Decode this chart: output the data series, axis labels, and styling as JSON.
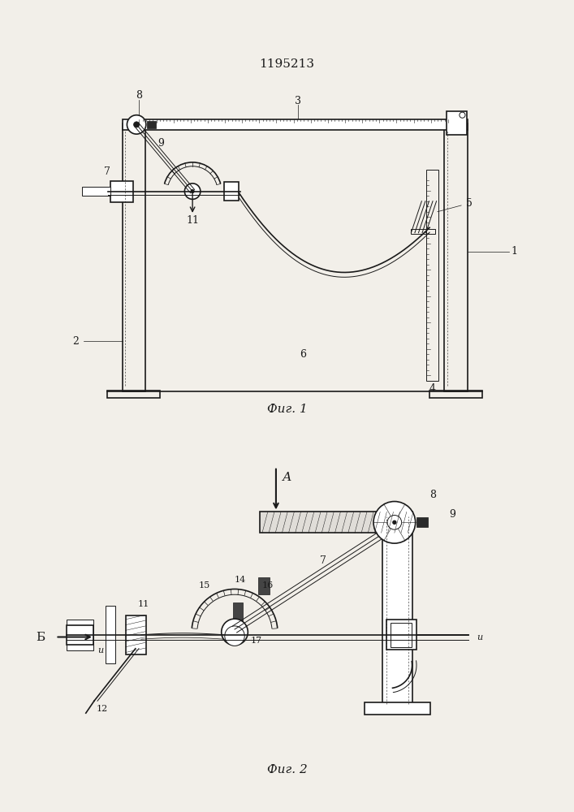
{
  "title": "1195213",
  "fig1_caption": "Фиг. 1",
  "fig2_caption": "Фиг. 2",
  "bg_color": "#f2efe9",
  "line_color": "#1a1a1a"
}
